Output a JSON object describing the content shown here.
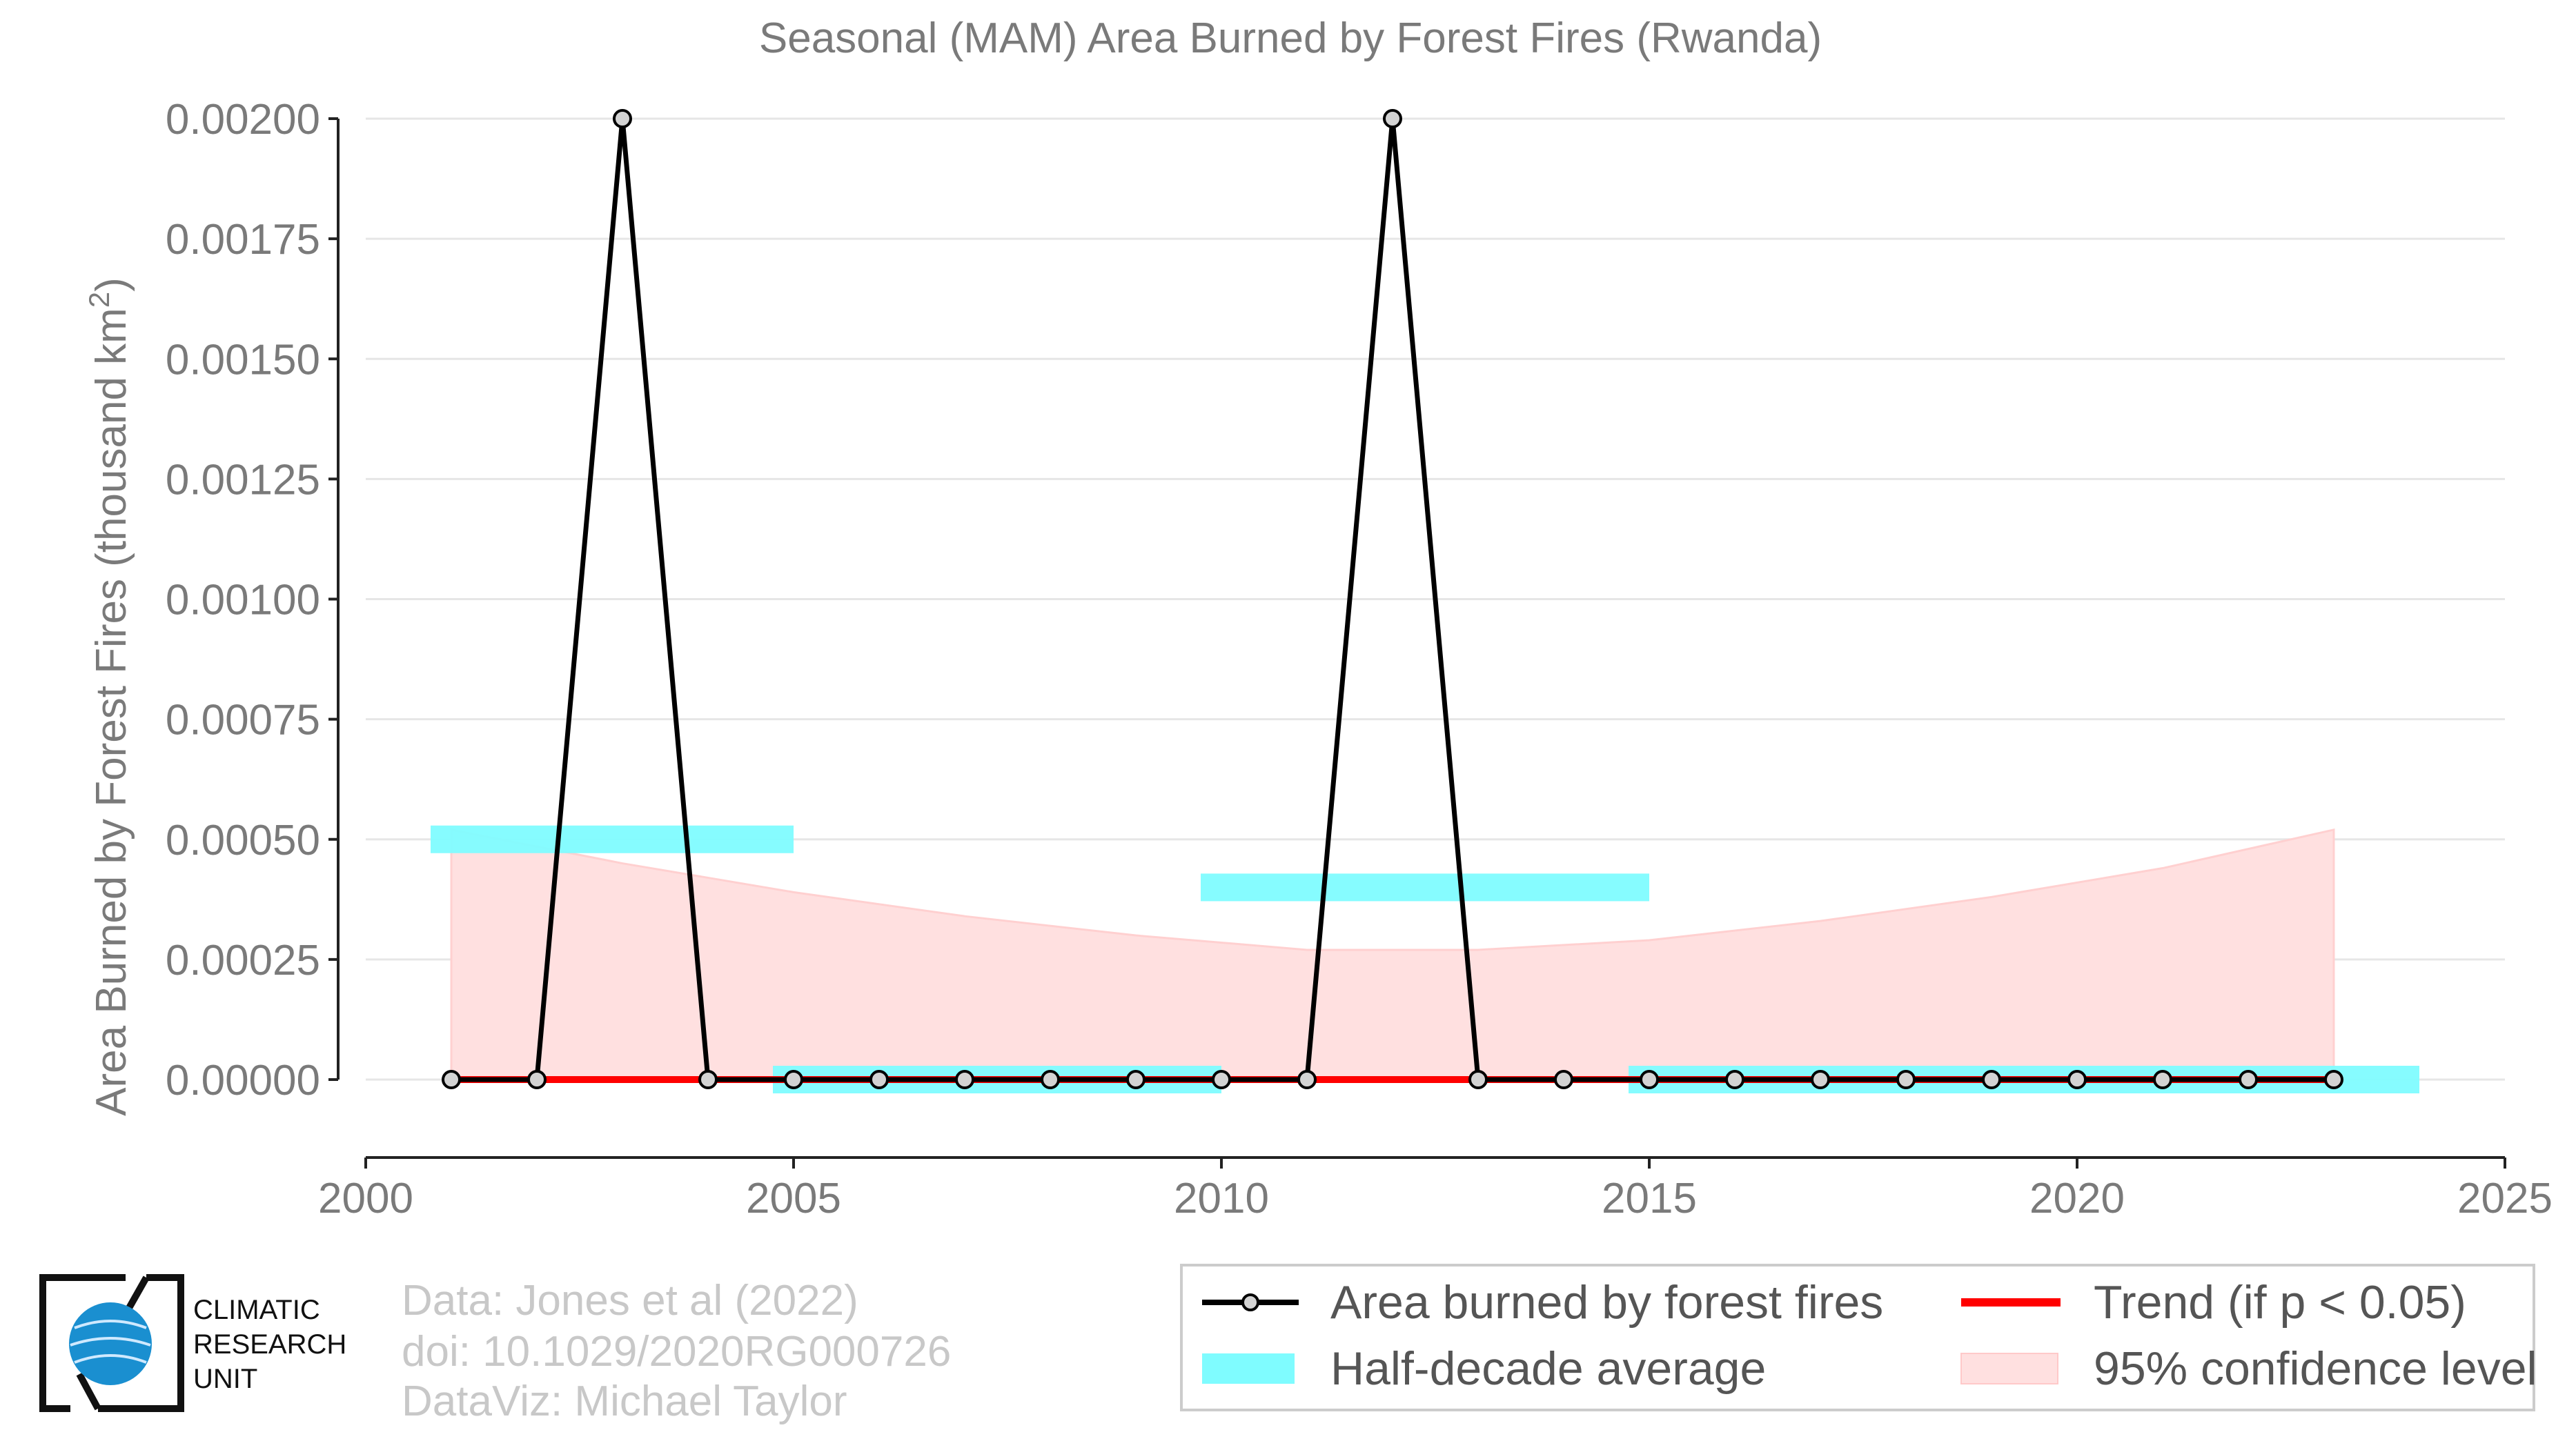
{
  "chart_data": {
    "type": "line",
    "title": "Seasonal (MAM) Area Burned by Forest Fires (Rwanda)",
    "ylabel": "Area Burned by Forest Fires (thousand km",
    "ylabel_sup": "2",
    "ylabel_close": ")",
    "xlabel": "",
    "xlim": [
      2000,
      2025
    ],
    "ylim": [
      0,
      0.002
    ],
    "x_ticks": [
      2000,
      2005,
      2010,
      2015,
      2020,
      2025
    ],
    "y_ticks": [
      0,
      0.00025,
      0.0005,
      0.00075,
      0.001,
      0.00125,
      0.0015,
      0.00175,
      0.002
    ],
    "y_tick_labels": [
      "0.00000",
      "0.00025",
      "0.00050",
      "0.00075",
      "0.00100",
      "0.00125",
      "0.00150",
      "0.00175",
      "0.00200"
    ],
    "grid": "horizontal",
    "legend_position": "bottom-right",
    "series": [
      {
        "name": "Area burned by forest fires",
        "color": "#000000",
        "x": [
          2001,
          2002,
          2003,
          2004,
          2005,
          2006,
          2007,
          2008,
          2009,
          2010,
          2011,
          2012,
          2013,
          2014,
          2015,
          2016,
          2017,
          2018,
          2019,
          2020,
          2021,
          2022,
          2023
        ],
        "y": [
          0,
          0,
          0.002,
          0,
          0,
          0,
          0,
          0,
          0,
          0,
          0,
          0.002,
          0,
          0,
          0,
          0,
          0,
          0,
          0,
          0,
          0,
          0,
          0
        ]
      }
    ],
    "half_decade_average": {
      "name": "Half-decade average",
      "color": "#7ffcff",
      "segments": [
        {
          "x_start": 2001,
          "x_end": 2005,
          "value": 0.0005
        },
        {
          "x_start": 2005,
          "x_end": 2010,
          "value": 0
        },
        {
          "x_start": 2010,
          "x_end": 2015,
          "value": 0.0004
        },
        {
          "x_start": 2015,
          "x_end": 2024,
          "value": 0
        }
      ]
    },
    "trend": {
      "name": "Trend (if p < 0.05)",
      "color": "#ff0000",
      "x_start": 2001,
      "x_end": 2023,
      "y_start": 0,
      "y_end": 0
    },
    "confidence": {
      "name": "95% confidence level",
      "color": "#ffe0e0",
      "x": [
        2001,
        2003,
        2005,
        2007,
        2009,
        2011,
        2012,
        2013,
        2015,
        2017,
        2019,
        2021,
        2023
      ],
      "upper": [
        0.00052,
        0.00045,
        0.00039,
        0.00034,
        0.0003,
        0.00027,
        0.00027,
        0.00027,
        0.00029,
        0.00033,
        0.00038,
        0.00044,
        0.00052
      ],
      "lower": [
        0,
        0,
        0,
        0,
        0,
        0,
        0,
        0,
        0,
        0,
        0,
        0,
        0
      ]
    }
  },
  "credits": {
    "line1": "Data: Jones et al (2022)",
    "line2": "doi: 10.1029/2020RG000726",
    "line3": "DataViz: Michael Taylor"
  },
  "logo": {
    "line1": "CLIMATIC",
    "line2": "RESEARCH",
    "line3": "UNIT"
  }
}
